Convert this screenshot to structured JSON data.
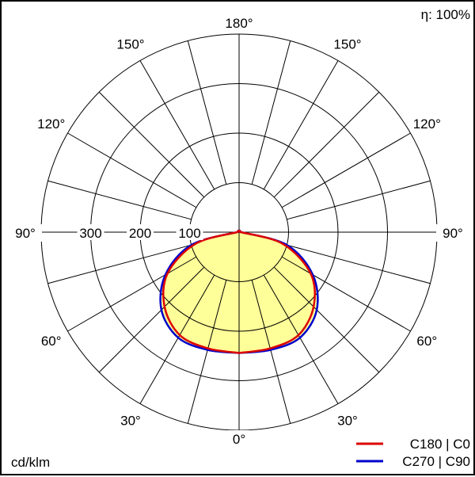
{
  "chart_data": {
    "type": "polar",
    "efficiency_label": "η: 100%",
    "unit_label": "cd/klm",
    "ring_values": [
      100,
      200,
      300,
      400
    ],
    "radial_labels": [
      "100",
      "200",
      "300"
    ],
    "angle_labels": [
      {
        "angle": 180,
        "text": "180°"
      },
      {
        "angle": 150,
        "text": "150°"
      },
      {
        "angle": 120,
        "text": "120°"
      },
      {
        "angle": 90,
        "text": "90°"
      },
      {
        "angle": 60,
        "text": "60°"
      },
      {
        "angle": 30,
        "text": "30°"
      },
      {
        "angle": 0,
        "text": "0°"
      }
    ],
    "series": [
      {
        "name": "C180 | C0",
        "color": "#dd0000",
        "angles": [
          0,
          15,
          30,
          45,
          60,
          75,
          90
        ],
        "values": [
          244,
          243,
          240,
          213,
          167,
          92,
          4
        ]
      },
      {
        "name": "C270 | C90",
        "color": "#0000cc",
        "angles": [
          0,
          15,
          30,
          45,
          60,
          75,
          90
        ],
        "values": [
          244,
          246,
          246,
          222,
          172,
          100,
          4
        ]
      }
    ],
    "fill_color": "#ffff99"
  }
}
